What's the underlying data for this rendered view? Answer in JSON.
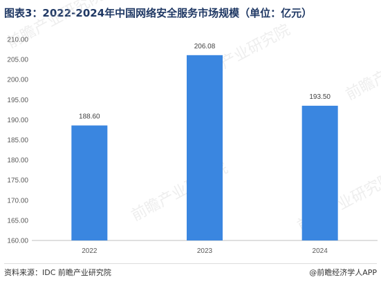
{
  "title": "图表3：2022-2024年中国网络安全服务市场规模（单位：亿元）",
  "source": "资料来源：IDC 前瞻产业研究院",
  "credit": "@前瞻经济学人APP",
  "watermark": "前瞻产业研究院",
  "colors": {
    "bar": "#3a86e0",
    "axis": "#bfbfbf",
    "grid": "#e6e6e6",
    "title": "#1f3864"
  },
  "chart_data": {
    "type": "bar",
    "categories": [
      "2022",
      "2023",
      "2024"
    ],
    "values": [
      188.6,
      206.08,
      193.5
    ],
    "value_labels": [
      "188.60",
      "206.08",
      "193.50"
    ],
    "ylim": [
      160,
      210
    ],
    "yticks": [
      160,
      165,
      170,
      175,
      180,
      185,
      190,
      195,
      200,
      205,
      210
    ],
    "ytick_labels": [
      "160.00",
      "165.00",
      "170.00",
      "175.00",
      "180.00",
      "185.00",
      "190.00",
      "195.00",
      "200.00",
      "205.00",
      "210.00"
    ],
    "xlabel": "",
    "ylabel": "",
    "grid": false,
    "legend": "none"
  }
}
